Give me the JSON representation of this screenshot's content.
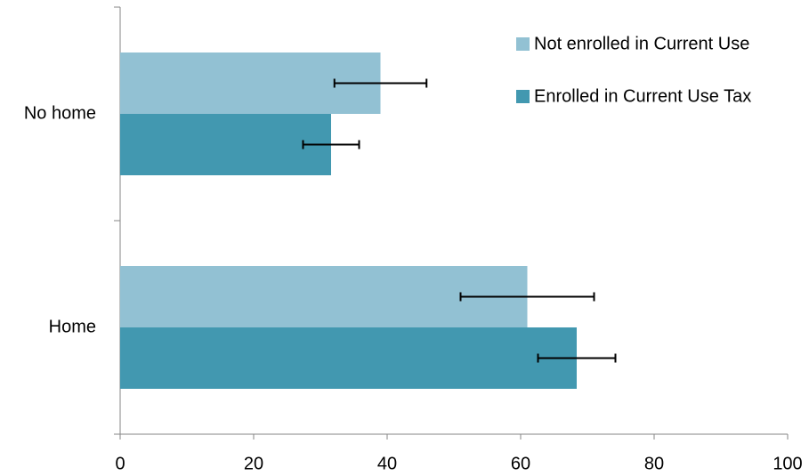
{
  "chart_data": {
    "type": "bar",
    "orientation": "horizontal",
    "categories": [
      "No home",
      "Home"
    ],
    "series": [
      {
        "name": "Not enrolled in Current Use",
        "color": "#92c1d3",
        "values": [
          39,
          61
        ],
        "errors": [
          6.9,
          10
        ]
      },
      {
        "name": "Enrolled in Current Use Tax",
        "color": "#4298b0",
        "values": [
          31.6,
          68.4
        ],
        "errors": [
          4.2,
          5.8
        ]
      }
    ],
    "xlim": [
      0,
      100
    ],
    "xticks": [
      0,
      20,
      40,
      60,
      80,
      100
    ],
    "legend": "top-right"
  }
}
